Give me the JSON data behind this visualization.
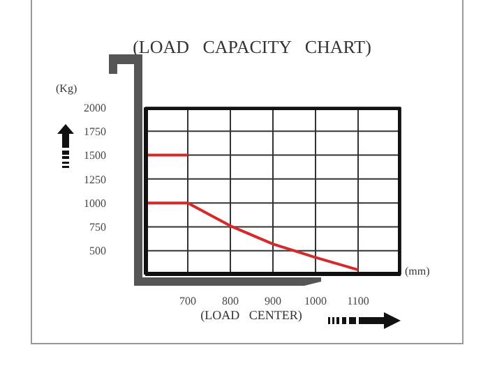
{
  "chart_data": {
    "type": "line",
    "title": "(LOAD   CAPACITY   CHART)",
    "xlabel": "(LOAD   CENTER)",
    "ylabel": "(Kg)",
    "annotations": [
      "(mm)"
    ],
    "xlim": [
      600,
      1200
    ],
    "xticks": [
      700,
      800,
      900,
      1000,
      1100
    ],
    "ylim": [
      250,
      2000
    ],
    "yticks": [
      500,
      750,
      1000,
      1250,
      1500,
      1750,
      2000
    ],
    "grid": true,
    "marker": "none",
    "line_style": "solid",
    "series": [
      {
        "color": "#d42a2a",
        "x": [
          600,
          700
        ],
        "values": [
          1500,
          1500
        ]
      },
      {
        "color": "#d42a2a",
        "x": [
          600,
          700,
          800,
          900,
          1000,
          1100
        ],
        "values": [
          1000,
          1000,
          760,
          570,
          430,
          300
        ]
      }
    ]
  }
}
